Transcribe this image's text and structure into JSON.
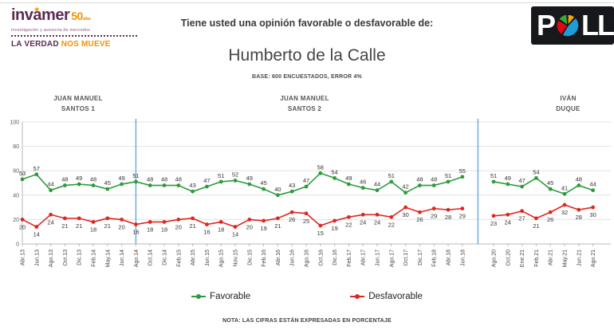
{
  "header": {
    "logo": {
      "part1": "inv",
      "part2": "a",
      "part3": "mer",
      "star": "✶",
      "number": "50",
      "anios": "años",
      "tagline": "investigación y asesoría de mercados",
      "slogan_part1": "LA VERDAD",
      "slogan_part2": "NOS MUEVE"
    },
    "question": "Tiene usted una opinión favorable o desfavorable de:",
    "poll_logo": {
      "p": "P",
      "ll": "LL"
    }
  },
  "title": "Humberto de la Calle",
  "base_note": "BASE: 600 ENCUESTADOS, ERROR 4%",
  "periods": [
    {
      "line1": "JUAN MANUEL",
      "line2": "SANTOS 1"
    },
    {
      "line1": "JUAN MANUEL",
      "line2": "SANTOS 2"
    },
    {
      "line1": "IVÁN",
      "line2": "DUQUE"
    }
  ],
  "footer_note": "NOTA: LAS CIFRAS ESTÁN EXPRESADAS EN PORCENTAJE",
  "colors": {
    "favorable": "#2e9b3c",
    "desfavorable": "#e02620",
    "divider_blue": "#7bafdc",
    "grid": "#e3e3e3",
    "axis": "#b8b8b8",
    "label_text": "#333333",
    "tick_text": "#595959"
  },
  "chart_data": {
    "type": "line",
    "title": "Humberto de la Calle",
    "xlabel": "",
    "ylabel": "",
    "ylim": [
      0,
      100
    ],
    "yticks": [
      0,
      20,
      40,
      60,
      80,
      100
    ],
    "grid": true,
    "legend_position": "bottom",
    "x": [
      "Abr.13",
      "Jun.13",
      "Ago.13",
      "Oct.13",
      "Dic.13",
      "Feb.14",
      "May.14",
      "Jun.14",
      "Ago.14",
      "Oct.14",
      "Dic.14",
      "Feb.15",
      "Abr.15",
      "Jun.15",
      "Ago.15",
      "Nov.15",
      "Dic.15",
      "Feb.16",
      "Abr.16",
      "Jun.16",
      "Ago.16",
      "Oct.16",
      "Dic.16",
      "Feb.17",
      "Abr.17",
      "Jun.17",
      "Ago.17",
      "Oct.17",
      "Dic.17",
      "Feb.18",
      "Abr.18",
      "Jun.18",
      "Ago.20",
      "Oct.20",
      "Ene.21",
      "Feb.21",
      "Abr.21",
      "May.21",
      "Jun.21",
      "Ago.21"
    ],
    "series": [
      {
        "name": "Favorable",
        "color": "#2e9b3c",
        "values": [
          53,
          57,
          44,
          48,
          49,
          48,
          45,
          49,
          51,
          48,
          48,
          48,
          43,
          47,
          51,
          52,
          49,
          45,
          40,
          43,
          47,
          58,
          54,
          49,
          46,
          44,
          51,
          42,
          48,
          48,
          51,
          55,
          51,
          49,
          47,
          54,
          45,
          41,
          48,
          44
        ]
      },
      {
        "name": "Desfavorable",
        "color": "#e02620",
        "values": [
          20,
          14,
          24,
          21,
          21,
          18,
          21,
          20,
          16,
          18,
          18,
          20,
          21,
          16,
          18,
          14,
          20,
          19,
          21,
          26,
          25,
          15,
          19,
          22,
          24,
          24,
          22,
          30,
          26,
          29,
          28,
          29,
          23,
          24,
          27,
          21,
          26,
          32,
          28,
          30
        ]
      }
    ],
    "gap_after_index": 31,
    "dividers": [
      {
        "on_index": 8
      },
      {
        "between_indices": [
          31,
          32
        ]
      }
    ]
  }
}
